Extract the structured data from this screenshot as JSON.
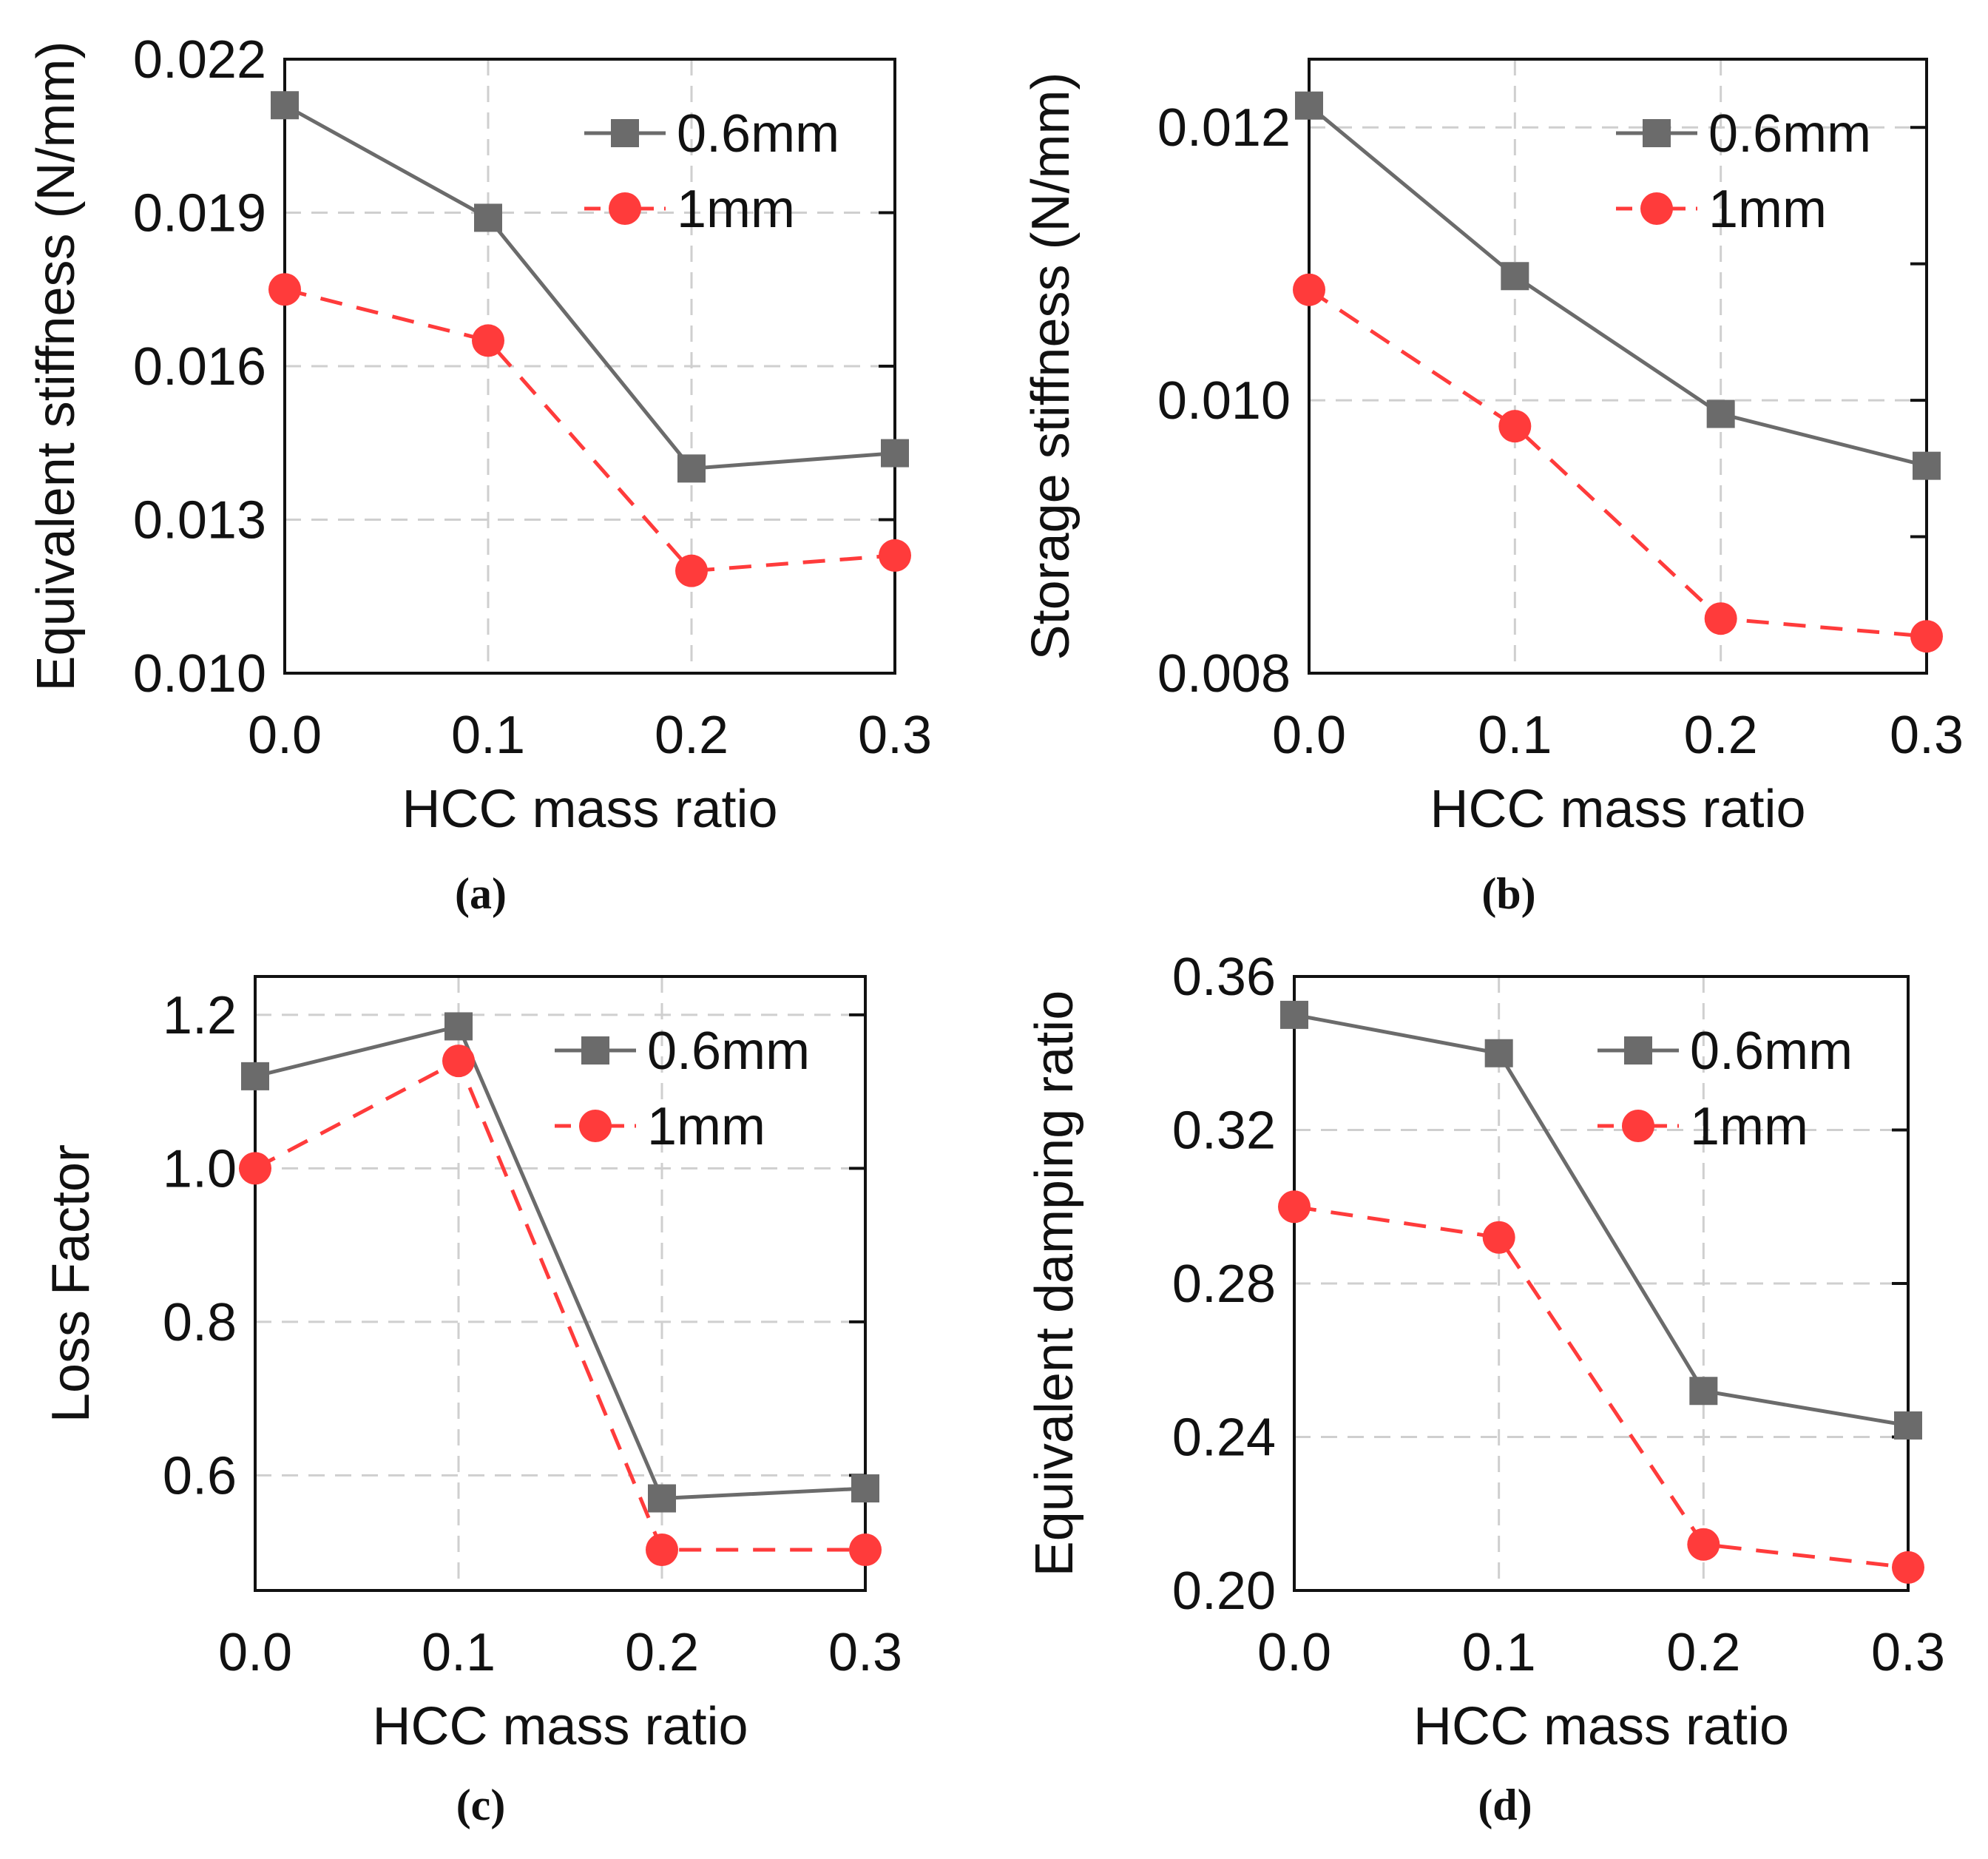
{
  "colors": {
    "series_a": "#6b6b6b",
    "series_b": "#ff3b3b",
    "grid": "#cfcfcf",
    "axis": "#111111"
  },
  "chart_data": [
    {
      "panel": "a",
      "caption": "(a)",
      "type": "line",
      "xlabel": "HCC mass ratio",
      "ylabel": "Equivalent stiffness (N/mm)",
      "x": [
        0.0,
        0.1,
        0.2,
        0.3
      ],
      "xticks": [
        "0.0",
        "0.1",
        "0.2",
        "0.3"
      ],
      "xlim": [
        0.0,
        0.3
      ],
      "ylim": [
        0.01,
        0.022
      ],
      "yticks": [
        "0.010",
        "0.013",
        "0.016",
        "0.019",
        "0.022"
      ],
      "minor_yticks": [],
      "grid": true,
      "legend": "top-right",
      "series": [
        {
          "name": "0.6mm",
          "marker": "square",
          "line": "solid",
          "values": [
            0.0211,
            0.0189,
            0.014,
            0.0143
          ]
        },
        {
          "name": "1mm",
          "marker": "circle",
          "line": "dashed",
          "values": [
            0.0175,
            0.0165,
            0.012,
            0.0123
          ]
        }
      ]
    },
    {
      "panel": "b",
      "caption": "(b)",
      "type": "line",
      "xlabel": "HCC mass ratio",
      "ylabel": "Storage stiffness (N/mm)",
      "x": [
        0.0,
        0.1,
        0.2,
        0.3
      ],
      "xticks": [
        "0.0",
        "0.1",
        "0.2",
        "0.3"
      ],
      "xlim": [
        0.0,
        0.3
      ],
      "ylim": [
        0.008,
        0.0125
      ],
      "yticks": [
        "0.008",
        "0.010",
        "0.012"
      ],
      "minor_yticks": [
        0.009,
        0.011
      ],
      "grid": true,
      "legend": "top-right",
      "series": [
        {
          "name": "0.6mm",
          "marker": "square",
          "line": "solid",
          "values": [
            0.01216,
            0.01091,
            0.0099,
            0.00952
          ]
        },
        {
          "name": "1mm",
          "marker": "circle",
          "line": "dashed",
          "values": [
            0.01081,
            0.00981,
            0.0084,
            0.00827
          ]
        }
      ]
    },
    {
      "panel": "c",
      "caption": "(c)",
      "type": "line",
      "xlabel": "HCC mass ratio",
      "ylabel": "Loss Factor",
      "x": [
        0.0,
        0.1,
        0.2,
        0.3
      ],
      "xticks": [
        "0.0",
        "0.1",
        "0.2",
        "0.3"
      ],
      "xlim": [
        0.0,
        0.3
      ],
      "ylim": [
        0.45,
        1.25
      ],
      "yticks": [
        "0.6",
        "0.8",
        "1.0",
        "1.2"
      ],
      "minor_yticks": [],
      "grid": true,
      "legend": "top-right",
      "series": [
        {
          "name": "0.6mm",
          "marker": "square",
          "line": "solid",
          "values": [
            1.12,
            1.185,
            0.57,
            0.583
          ]
        },
        {
          "name": "1mm",
          "marker": "circle",
          "line": "dashed",
          "values": [
            1.0,
            1.14,
            0.503,
            0.503
          ]
        }
      ]
    },
    {
      "panel": "d",
      "caption": "(d)",
      "type": "line",
      "xlabel": "HCC mass ratio",
      "ylabel": "Equivalent damping ratio",
      "x": [
        0.0,
        0.1,
        0.2,
        0.3
      ],
      "xticks": [
        "0.0",
        "0.1",
        "0.2",
        "0.3"
      ],
      "xlim": [
        0.0,
        0.3
      ],
      "ylim": [
        0.2,
        0.36
      ],
      "yticks": [
        "0.20",
        "0.24",
        "0.28",
        "0.32",
        "0.36"
      ],
      "minor_yticks": [],
      "grid": true,
      "legend": "top-right",
      "series": [
        {
          "name": "0.6mm",
          "marker": "square",
          "line": "solid",
          "values": [
            0.35,
            0.34,
            0.252,
            0.243
          ]
        },
        {
          "name": "1mm",
          "marker": "circle",
          "line": "dashed",
          "values": [
            0.3,
            0.292,
            0.212,
            0.206
          ]
        }
      ]
    }
  ]
}
